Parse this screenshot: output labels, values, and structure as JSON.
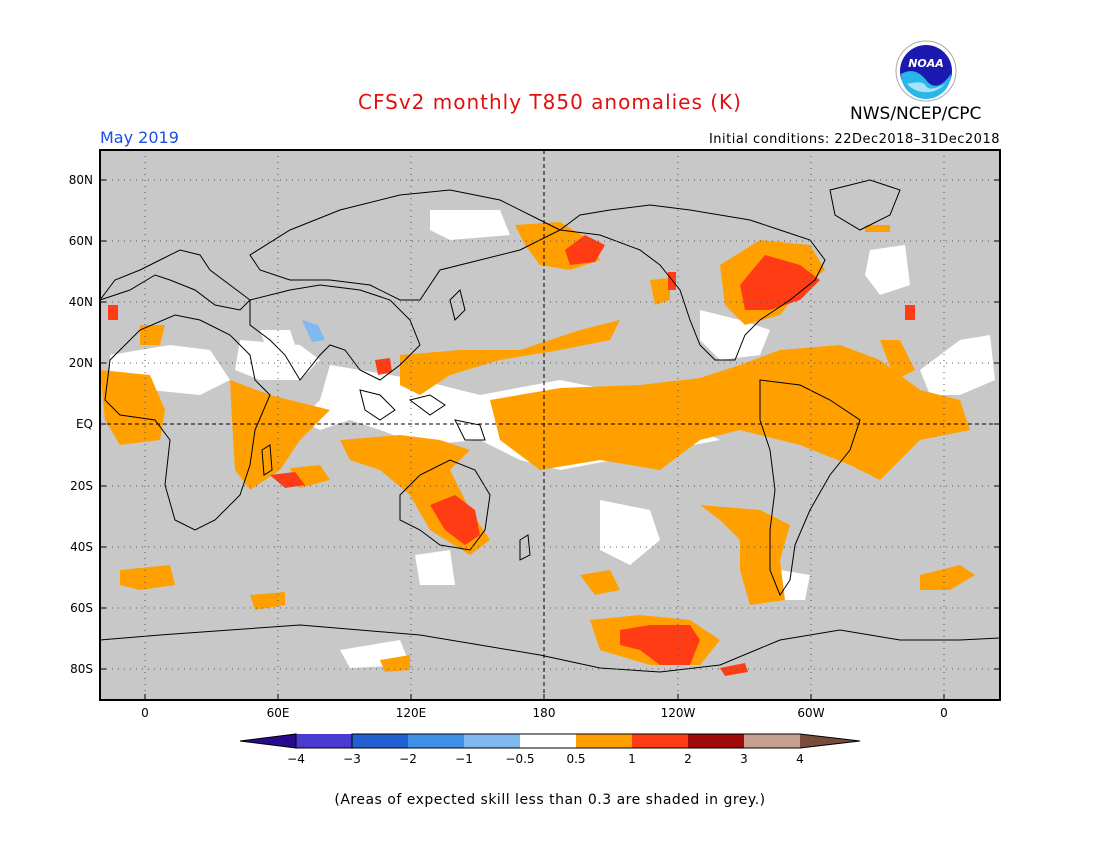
{
  "title": "CFSv2 monthly T850 anomalies (K)",
  "month": "May 2019",
  "initial_conditions": "Initial conditions: 22Dec2018–31Dec2018",
  "agency": "NWS/NCEP/CPC",
  "logo_text": "NOAA",
  "footnote": "(Areas of expected skill less than 0.3 are shaded in grey.)",
  "map": {
    "lat_ticks": [
      "80N",
      "60N",
      "40N",
      "20N",
      "EQ",
      "20S",
      "40S",
      "60S",
      "80S"
    ],
    "lon_ticks": [
      "0",
      "60E",
      "120E",
      "180",
      "120W",
      "60W",
      "0"
    ],
    "background_color": "#c8c8c8",
    "grid": true
  },
  "legend": {
    "labels": [
      "−4",
      "−3",
      "−2",
      "−1",
      "−0.5",
      "0.5",
      "1",
      "2",
      "3",
      "4"
    ],
    "colors": [
      "#2a0a8c",
      "#4a3ad0",
      "#2060d0",
      "#4090e8",
      "#80b8f0",
      "#ffffff",
      "#ffa000",
      "#ff3c14",
      "#a00a0a",
      "#c8a090",
      "#7a4a3a"
    ]
  },
  "colors": {
    "skill_grey": "#c8c8c8",
    "near_zero": "#ffffff",
    "warm_05_1": "#ffa000",
    "warm_1_2": "#ff3c14",
    "cool_1_05": "#80b8f0"
  }
}
